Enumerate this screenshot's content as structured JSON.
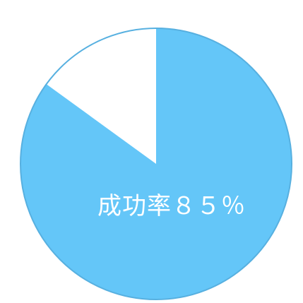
{
  "chart_data": {
    "type": "pie",
    "slices": [
      {
        "label": "成功率",
        "value": 85,
        "color": "#64c6f8"
      },
      {
        "label": "",
        "value": 15,
        "color": "#ffffff"
      }
    ],
    "label_text": "成功率８５％",
    "start_angle_deg": 0,
    "direction": "clockwise",
    "outline_color": "#57b0e0"
  }
}
